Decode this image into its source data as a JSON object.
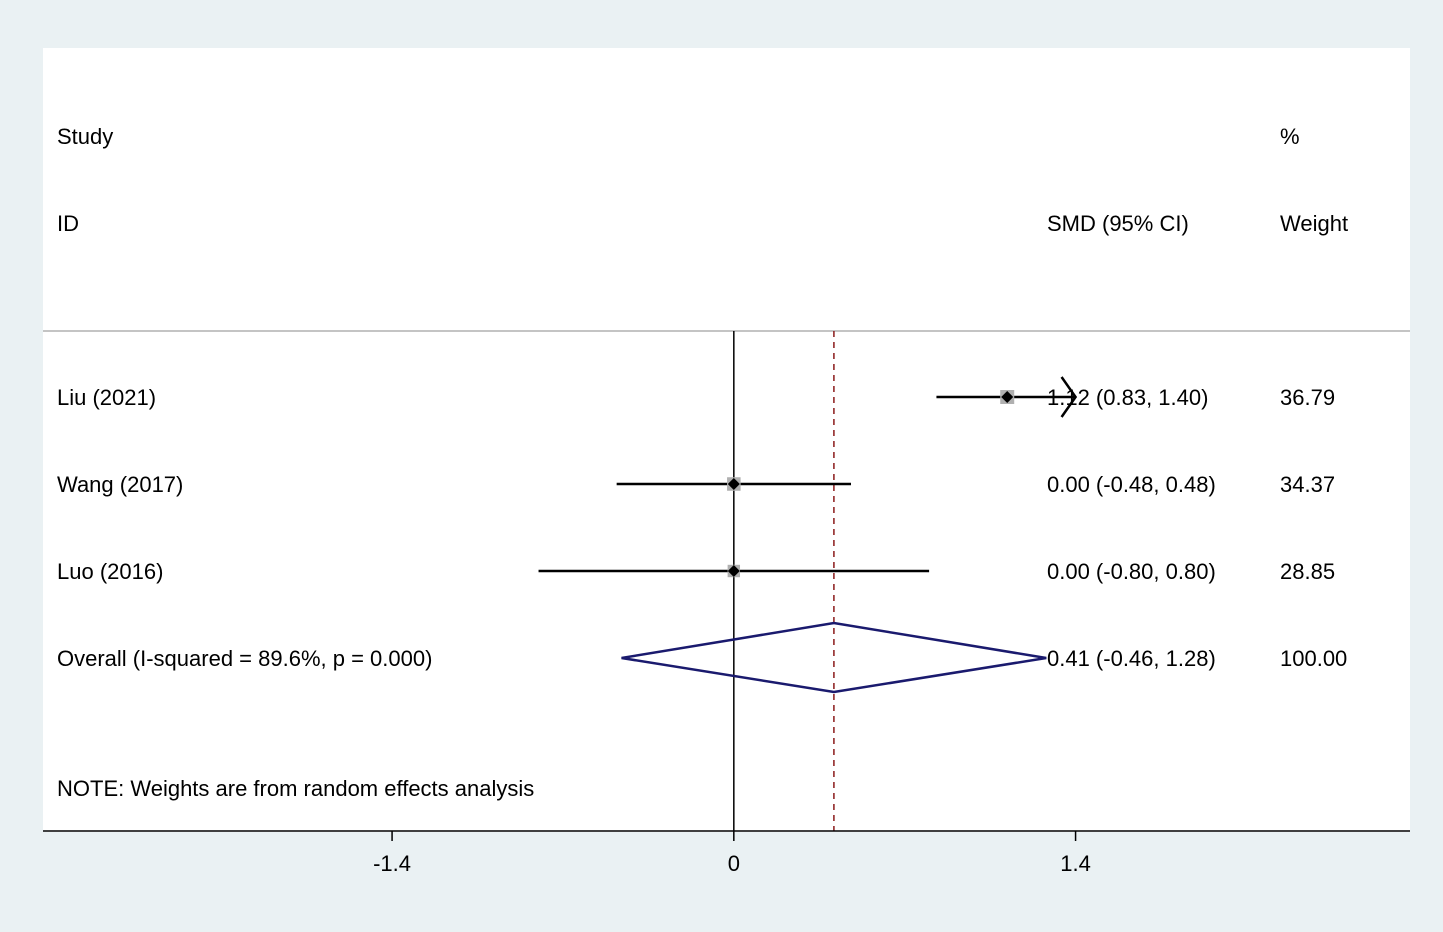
{
  "colors": {
    "background": "#eaf1f3",
    "panel": "#ffffff",
    "ci_line": "#000000",
    "point": "#000000",
    "weight_box": "#b0b0b0",
    "diamond": "#1a1a6e",
    "overall_line": "#8b1a1a",
    "separator": "#b0b0b0"
  },
  "chart_data": {
    "type": "forest",
    "header": {
      "study": "Study",
      "id": "ID",
      "effect": "SMD (95% CI)",
      "percent": "%",
      "weight": "Weight"
    },
    "studies": [
      {
        "id": "Liu (2021)",
        "smd": 1.12,
        "lower": 0.83,
        "upper": 1.4,
        "effect_label": "1.12 (0.83, 1.40)",
        "weight": 36.79,
        "weight_label": "36.79",
        "arrow_right": true
      },
      {
        "id": "Wang (2017)",
        "smd": 0.0,
        "lower": -0.48,
        "upper": 0.48,
        "effect_label": "0.00 (-0.48, 0.48)",
        "weight": 34.37,
        "weight_label": "34.37",
        "arrow_right": false
      },
      {
        "id": "Luo (2016)",
        "smd": 0.0,
        "lower": -0.8,
        "upper": 0.8,
        "effect_label": "0.00 (-0.80, 0.80)",
        "weight": 28.85,
        "weight_label": "28.85",
        "arrow_right": false
      }
    ],
    "overall": {
      "label": "Overall  (I-squared = 89.6%, p = 0.000)",
      "smd": 0.41,
      "lower": -0.46,
      "upper": 1.28,
      "effect_label": "0.41 (-0.46, 1.28)",
      "weight_label": "100.00"
    },
    "note": "NOTE: Weights are from random effects analysis",
    "x_ticks": [
      {
        "value": -1.4,
        "label": "-1.4"
      },
      {
        "value": 0,
        "label": "0"
      },
      {
        "value": 1.4,
        "label": "1.4"
      }
    ],
    "xlim": [
      -2.83,
      2.77
    ],
    "null_line": 0,
    "overall_line_style": "dashed",
    "grid": false
  }
}
